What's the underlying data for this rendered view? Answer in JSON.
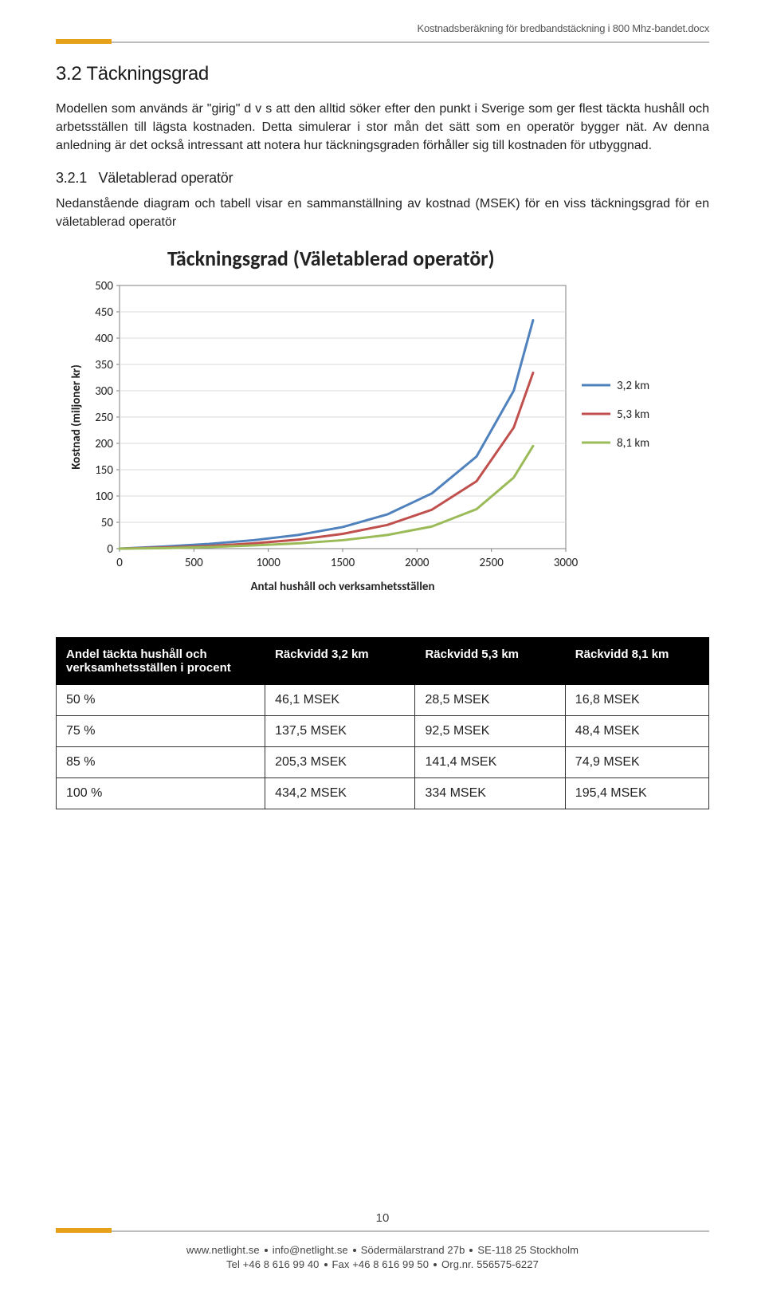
{
  "doc_title": "Kostnadsberäkning för bredbandstäckning i 800 Mhz-bandet.docx",
  "section": {
    "number": "3.2",
    "title": "Täckningsgrad",
    "p1": "Modellen som används är \"girig\" d v s att den alltid söker efter den punkt i Sverige som ger flest täckta hushåll och arbetsställen till lägsta kostnaden. Detta simulerar i stor mån det sätt som en operatör bygger nät. Av denna anledning är det också intressant att notera hur täckningsgraden förhåller sig till kostnaden för utbyggnad.",
    "sub_number": "3.2.1",
    "sub_title": "Väletablerad operatör",
    "p2": "Nedanstående diagram och tabell visar en sammanställning av kostnad (MSEK) för en viss täckningsgrad för en väletablerad operatör"
  },
  "chart": {
    "title": "Täckningsgrad (Väletablerad operatör)",
    "y_label": "Kostnad (miljoner kr)",
    "x_label": "Antal hushåll och verksamhetsställen",
    "y_ticks": [
      0,
      50,
      100,
      150,
      200,
      250,
      300,
      350,
      400,
      450,
      500
    ],
    "x_ticks": [
      0,
      500,
      1000,
      1500,
      2000,
      2500,
      3000
    ],
    "xlim": [
      0,
      3000
    ],
    "ylim": [
      0,
      500
    ],
    "grid_color": "#d9d9d9",
    "plot_border": "#7f7f7f",
    "background": "#ffffff",
    "series": [
      {
        "name": "3,2 km",
        "color": "#4f81bd",
        "width": 3,
        "points": [
          [
            0,
            0
          ],
          [
            300,
            4
          ],
          [
            600,
            9
          ],
          [
            900,
            16
          ],
          [
            1200,
            26
          ],
          [
            1500,
            41
          ],
          [
            1800,
            65
          ],
          [
            2100,
            105
          ],
          [
            2400,
            175
          ],
          [
            2650,
            300
          ],
          [
            2780,
            434
          ]
        ]
      },
      {
        "name": "5,3 km",
        "color": "#c0504d",
        "width": 3,
        "points": [
          [
            0,
            0
          ],
          [
            300,
            2
          ],
          [
            600,
            5
          ],
          [
            900,
            10
          ],
          [
            1200,
            17
          ],
          [
            1500,
            28
          ],
          [
            1800,
            45
          ],
          [
            2100,
            74
          ],
          [
            2400,
            128
          ],
          [
            2650,
            230
          ],
          [
            2780,
            334
          ]
        ]
      },
      {
        "name": "8,1 km",
        "color": "#9bbb59",
        "width": 3,
        "points": [
          [
            0,
            0
          ],
          [
            300,
            1
          ],
          [
            600,
            3
          ],
          [
            900,
            6
          ],
          [
            1200,
            10
          ],
          [
            1500,
            16
          ],
          [
            1800,
            26
          ],
          [
            2100,
            42
          ],
          [
            2400,
            75
          ],
          [
            2650,
            135
          ],
          [
            2780,
            195
          ]
        ]
      }
    ]
  },
  "table": {
    "headers": [
      "Andel täckta hushåll och verksamhetsställen i procent",
      "Räckvidd 3,2 km",
      "Räckvidd 5,3 km",
      "Räckvidd 8,1 km"
    ],
    "rows": [
      [
        "50 %",
        "46,1 MSEK",
        "28,5 MSEK",
        "16,8 MSEK"
      ],
      [
        "75 %",
        "137,5 MSEK",
        "92,5 MSEK",
        "48,4 MSEK"
      ],
      [
        "85 %",
        "205,3 MSEK",
        "141,4 MSEK",
        "74,9 MSEK"
      ],
      [
        "100 %",
        "434,2 MSEK",
        "334 MSEK",
        "195,4 MSEK"
      ]
    ],
    "col_widths": [
      "32%",
      "23%",
      "23%",
      "22%"
    ]
  },
  "footer": {
    "page_number": "10",
    "line1_parts": [
      "www.netlight.se",
      "info@netlight.se",
      "Södermälarstrand 27b",
      "SE-118 25 Stockholm"
    ],
    "line2_parts": [
      "Tel +46 8 616 99 40",
      "Fax +46 8 616 99 50",
      "Org.nr. 556575-6227"
    ]
  }
}
